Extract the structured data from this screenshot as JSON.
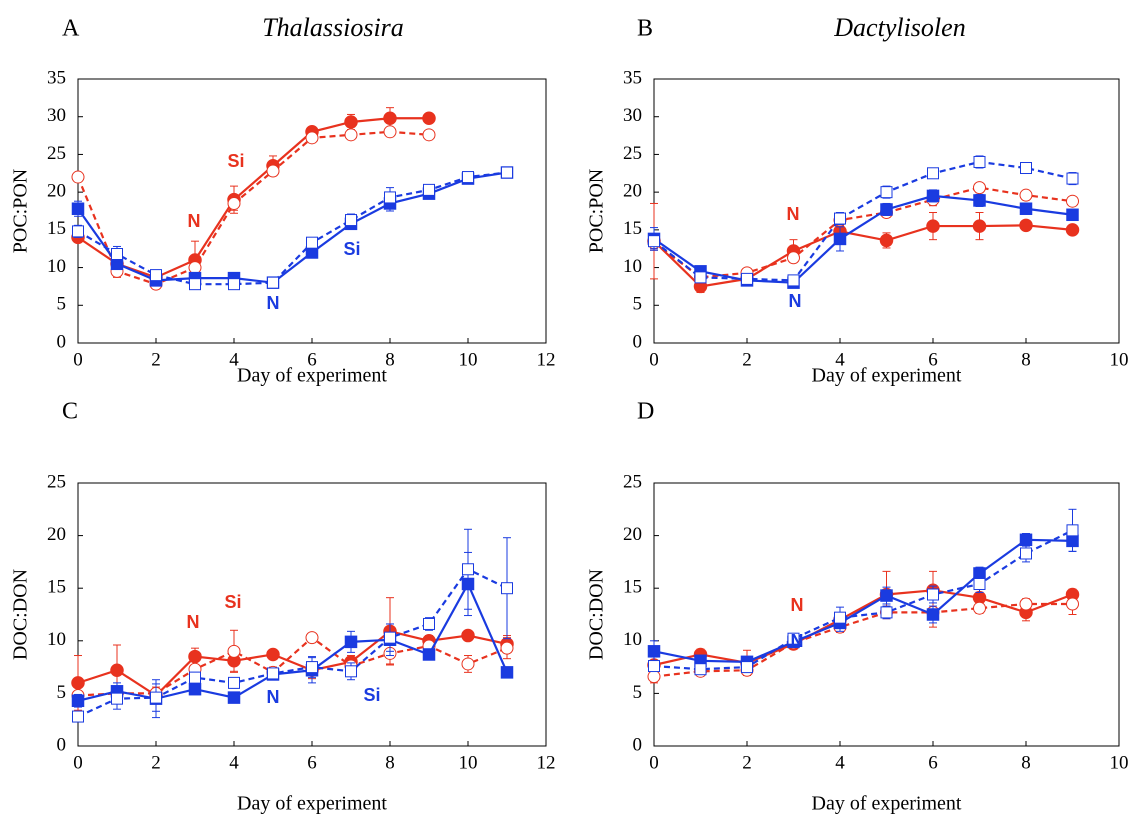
{
  "chart_data": [
    {
      "type": "line",
      "panel_label": "A",
      "title": "Thalassiosira",
      "xlabel": "Day of experiment",
      "ylabel": "POC:PON",
      "xlim": [
        0,
        12
      ],
      "ylim": [
        0,
        35
      ],
      "xticks": [
        0,
        2,
        4,
        6,
        8,
        10,
        12
      ],
      "yticks": [
        0,
        5,
        10,
        15,
        20,
        25,
        30,
        35
      ],
      "series": [
        {
          "color": "#e8321e",
          "line": "solid",
          "marker": "filled-circle",
          "x": [
            0,
            1,
            2,
            3,
            4,
            5,
            6,
            7,
            8,
            9
          ],
          "values": [
            14,
            10.5,
            8.7,
            11,
            19,
            23.5,
            28,
            29.3,
            29.8,
            29.8
          ],
          "errors": [
            0.6,
            0.5,
            0.4,
            2.5,
            1.8,
            1.3,
            0.5,
            1,
            1.4,
            0.5
          ]
        },
        {
          "color": "#e8321e",
          "line": "dashed",
          "marker": "open-circle",
          "x": [
            0,
            1,
            2,
            3,
            4,
            5,
            6,
            7,
            8,
            9
          ],
          "values": [
            22,
            9.5,
            7.8,
            10,
            18.5,
            22.8,
            27.2,
            27.6,
            28,
            27.6
          ],
          "errors": [
            0.5,
            0.8,
            0.4,
            0.6,
            0.9,
            0.6,
            0.4,
            0.4,
            0.5,
            0.4
          ]
        },
        {
          "color": "#1a3be0",
          "line": "solid",
          "marker": "filled-square",
          "x": [
            0,
            1,
            2,
            3,
            4,
            5,
            6,
            7,
            8,
            9,
            10,
            11
          ],
          "values": [
            17.8,
            10.5,
            8.3,
            8.6,
            8.6,
            8,
            12,
            15.8,
            18.5,
            19.8,
            21.8,
            22.6
          ],
          "errors": [
            1,
            0.6,
            0.4,
            0.4,
            0.4,
            0.4,
            0.5,
            0.7,
            1,
            0.5,
            0.5,
            0.4
          ]
        },
        {
          "color": "#1a3be0",
          "line": "dashed",
          "marker": "open-square",
          "x": [
            0,
            1,
            2,
            3,
            4,
            5,
            6,
            7,
            8,
            9,
            10,
            11
          ],
          "values": [
            14.8,
            11.8,
            9,
            7.8,
            7.8,
            8,
            13.3,
            16.3,
            19.3,
            20.3,
            22,
            22.6
          ],
          "errors": [
            0.8,
            1,
            0.6,
            0.4,
            0.4,
            0.4,
            0.5,
            0.8,
            1.3,
            0.7,
            0.4,
            0.4
          ]
        }
      ],
      "annotations": [
        {
          "text": "Si",
          "color": "#e8321e"
        },
        {
          "text": "N",
          "color": "#e8321e"
        },
        {
          "text": "Si",
          "color": "#1a3be0"
        },
        {
          "text": "N",
          "color": "#1a3be0"
        }
      ]
    },
    {
      "type": "line",
      "panel_label": "B",
      "title": "Dactylisolen",
      "xlabel": "Day of experiment",
      "ylabel": "POC:PON",
      "xlim": [
        0,
        10
      ],
      "ylim": [
        0,
        35
      ],
      "xticks": [
        0,
        2,
        4,
        6,
        8,
        10
      ],
      "yticks": [
        0,
        5,
        10,
        15,
        20,
        25,
        30,
        35
      ],
      "series": [
        {
          "color": "#e8321e",
          "line": "solid",
          "marker": "filled-circle",
          "x": [
            0,
            1,
            2,
            3,
            4,
            5,
            6,
            7,
            8,
            9
          ],
          "values": [
            13.5,
            7.5,
            8.5,
            12.2,
            14.8,
            13.6,
            15.5,
            15.5,
            15.6,
            15
          ],
          "errors": [
            5,
            0.8,
            0.5,
            1.5,
            0.8,
            1,
            1.8,
            1.8,
            0.5,
            0.5
          ]
        },
        {
          "color": "#e8321e",
          "line": "dashed",
          "marker": "open-circle",
          "x": [
            0,
            1,
            2,
            3,
            4,
            5,
            6,
            7,
            8,
            9
          ],
          "values": [
            13.3,
            8.7,
            9.3,
            11.3,
            16.3,
            17.3,
            19,
            20.6,
            19.6,
            18.8
          ],
          "errors": [
            1,
            0.5,
            0.4,
            0.5,
            0.6,
            0.6,
            0.8,
            0.6,
            0.5,
            0.5
          ]
        },
        {
          "color": "#1a3be0",
          "line": "solid",
          "marker": "filled-square",
          "x": [
            0,
            1,
            2,
            3,
            4,
            5,
            6,
            7,
            8,
            9
          ],
          "values": [
            13.8,
            9.5,
            8.3,
            8,
            13.8,
            17.7,
            19.5,
            18.9,
            17.8,
            17
          ],
          "errors": [
            1.5,
            0.6,
            0.5,
            0.5,
            1.6,
            0.8,
            0.8,
            0.8,
            0.5,
            0.5
          ]
        },
        {
          "color": "#1a3be0",
          "line": "dashed",
          "marker": "open-square",
          "x": [
            0,
            1,
            2,
            3,
            4,
            5,
            6,
            7,
            8,
            9
          ],
          "values": [
            13.5,
            8.7,
            8.5,
            8.3,
            16.5,
            20,
            22.5,
            24,
            23.2,
            21.8
          ],
          "errors": [
            1,
            0.5,
            0.4,
            0.4,
            0.8,
            0.8,
            0.6,
            0.8,
            0.5,
            0.8
          ]
        }
      ],
      "annotations": [
        {
          "text": "N",
          "color": "#e8321e"
        },
        {
          "text": "N",
          "color": "#1a3be0"
        }
      ]
    },
    {
      "type": "line",
      "panel_label": "C",
      "xlabel": "Day of experiment",
      "ylabel": "DOC:DON",
      "xlim": [
        0,
        12
      ],
      "ylim": [
        0,
        25
      ],
      "xticks": [
        0,
        2,
        4,
        6,
        8,
        10,
        12
      ],
      "yticks": [
        0,
        5,
        10,
        15,
        20,
        25
      ],
      "series": [
        {
          "color": "#e8321e",
          "line": "solid",
          "marker": "filled-circle",
          "x": [
            0,
            1,
            2,
            3,
            4,
            5,
            6,
            7,
            8,
            9,
            10,
            11
          ],
          "values": [
            6,
            7.2,
            4.8,
            8.5,
            8.1,
            8.7,
            7.2,
            8,
            10.9,
            10,
            10.5,
            9.7
          ],
          "errors": [
            2.6,
            2.4,
            0.5,
            0.8,
            1,
            0.4,
            0.8,
            0.6,
            3.2,
            0.5,
            0.4,
            0.8
          ]
        },
        {
          "color": "#e8321e",
          "line": "dashed",
          "marker": "open-circle",
          "x": [
            0,
            1,
            2,
            3,
            4,
            5,
            6,
            7,
            8,
            9,
            10,
            11
          ],
          "values": [
            4.8,
            5,
            5,
            7.3,
            9,
            7,
            10.3,
            7.6,
            8.8,
            9.5,
            7.8,
            9.3
          ],
          "errors": [
            1,
            0.5,
            0.6,
            1,
            2,
            0.5,
            0.4,
            0.6,
            1,
            0.6,
            0.8,
            1
          ]
        },
        {
          "color": "#1a3be0",
          "line": "solid",
          "marker": "filled-square",
          "x": [
            0,
            1,
            2,
            3,
            4,
            5,
            6,
            7,
            8,
            9,
            10,
            11
          ],
          "values": [
            4.3,
            5.2,
            4.5,
            5.4,
            4.6,
            6.8,
            7.2,
            9.9,
            10.1,
            8.7,
            15.4,
            7
          ],
          "errors": [
            0.6,
            0.8,
            1.8,
            0.5,
            0.4,
            0.5,
            1.2,
            1,
            1.5,
            0.5,
            3,
            0.5
          ]
        },
        {
          "color": "#1a3be0",
          "line": "dashed",
          "marker": "open-square",
          "x": [
            0,
            1,
            2,
            3,
            4,
            5,
            6,
            7,
            8,
            9,
            10,
            11
          ],
          "values": [
            2.8,
            4.5,
            4.6,
            6.5,
            6,
            6.9,
            7.5,
            7.1,
            10.3,
            11.6,
            16.8,
            15
          ],
          "errors": [
            0.5,
            1,
            1.3,
            0.5,
            0.5,
            0.5,
            1,
            0.8,
            1.3,
            0.6,
            3.8,
            4.8
          ]
        }
      ],
      "annotations": [
        {
          "text": "N",
          "color": "#e8321e"
        },
        {
          "text": "Si",
          "color": "#e8321e"
        },
        {
          "text": "N",
          "color": "#1a3be0"
        },
        {
          "text": "Si",
          "color": "#1a3be0"
        }
      ]
    },
    {
      "type": "line",
      "panel_label": "D",
      "xlabel": "Day of experiment",
      "ylabel": "DOC:DON",
      "xlim": [
        0,
        10
      ],
      "ylim": [
        0,
        25
      ],
      "xticks": [
        0,
        2,
        4,
        6,
        8,
        10
      ],
      "yticks": [
        0,
        5,
        10,
        15,
        20,
        25
      ],
      "series": [
        {
          "color": "#e8321e",
          "line": "solid",
          "marker": "filled-circle",
          "x": [
            0,
            1,
            2,
            3,
            4,
            5,
            6,
            7,
            8,
            9
          ],
          "values": [
            7.7,
            8.7,
            7.9,
            9.7,
            12,
            14.4,
            14.8,
            14.1,
            12.7,
            14.4
          ],
          "errors": [
            0.8,
            0.5,
            1.2,
            0.5,
            0.6,
            2.2,
            1.8,
            0.5,
            0.8,
            0.5
          ]
        },
        {
          "color": "#e8321e",
          "line": "dashed",
          "marker": "open-circle",
          "x": [
            0,
            1,
            2,
            3,
            4,
            5,
            6,
            7,
            8,
            9
          ],
          "values": [
            6.6,
            7.1,
            7.2,
            9.8,
            11.3,
            12.7,
            12.7,
            13.1,
            13.5,
            13.5
          ],
          "errors": [
            0.6,
            0.4,
            0.4,
            0.5,
            0.5,
            0.6,
            1.4,
            0.5,
            0.5,
            1
          ]
        },
        {
          "color": "#1a3be0",
          "line": "solid",
          "marker": "filled-square",
          "x": [
            0,
            1,
            2,
            3,
            4,
            5,
            6,
            7,
            8,
            9
          ],
          "values": [
            9,
            8.1,
            8,
            9.9,
            11.7,
            14.3,
            12.5,
            16.4,
            19.6,
            19.5
          ],
          "errors": [
            1,
            0.5,
            0.5,
            0.5,
            0.8,
            0.8,
            0.8,
            0.6,
            0.6,
            1
          ]
        },
        {
          "color": "#1a3be0",
          "line": "dashed",
          "marker": "open-square",
          "x": [
            0,
            1,
            2,
            3,
            4,
            5,
            6,
            7,
            8,
            9
          ],
          "values": [
            7.6,
            7.3,
            7.5,
            10.2,
            12.2,
            12.7,
            14.4,
            15.4,
            18.3,
            20.5
          ],
          "errors": [
            0.5,
            0.4,
            0.4,
            0.5,
            1,
            0.6,
            0.8,
            0.8,
            0.8,
            2
          ]
        }
      ],
      "annotations": [
        {
          "text": "N",
          "color": "#e8321e"
        },
        {
          "text": "N",
          "color": "#1a3be0"
        }
      ]
    }
  ]
}
